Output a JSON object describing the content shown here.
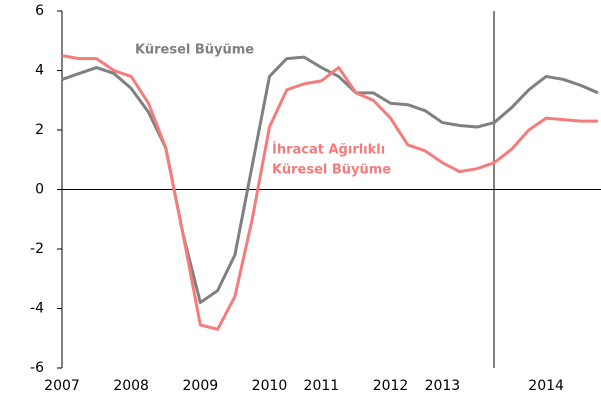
{
  "chart_data": {
    "type": "line",
    "categories": [
      "2007",
      null,
      null,
      null,
      "2008",
      null,
      null,
      null,
      "2009",
      null,
      null,
      null,
      "2010",
      null,
      null,
      "2011",
      null,
      null,
      null,
      "2012",
      null,
      null,
      "2013",
      null,
      null,
      null,
      null,
      null,
      "2014",
      null,
      null,
      null
    ],
    "series": [
      {
        "name": "Küresel Büyüme",
        "color": "#808080",
        "values": [
          3.7,
          3.9,
          4.1,
          3.9,
          3.4,
          2.6,
          1.4,
          -1.5,
          -3.8,
          -3.4,
          -2.2,
          0.8,
          3.8,
          4.4,
          4.45,
          4.1,
          3.8,
          3.25,
          3.25,
          2.9,
          2.85,
          2.65,
          2.25,
          2.15,
          2.1,
          2.25,
          2.75,
          3.35,
          3.8,
          3.7,
          3.5,
          3.25
        ]
      },
      {
        "name": "İhracat Ağırlıklı Küresel Büyüme",
        "color": "#f47c7c",
        "values": [
          4.5,
          4.4,
          4.4,
          4.0,
          3.8,
          2.9,
          1.4,
          -1.5,
          -4.55,
          -4.7,
          -3.6,
          -1.0,
          2.1,
          3.35,
          3.55,
          3.65,
          4.1,
          3.25,
          3.0,
          2.4,
          1.5,
          1.3,
          0.9,
          0.6,
          0.7,
          0.9,
          1.35,
          2.0,
          2.4,
          2.35,
          2.3,
          2.3
        ]
      }
    ],
    "annotations": [
      "Küresel Büyüme",
      "İhracat Ağırlıklı",
      "Küresel Büyüme"
    ],
    "ylim": [
      -6,
      6
    ],
    "yticks": [
      -6,
      -4,
      -2,
      0,
      2,
      4,
      6
    ]
  }
}
